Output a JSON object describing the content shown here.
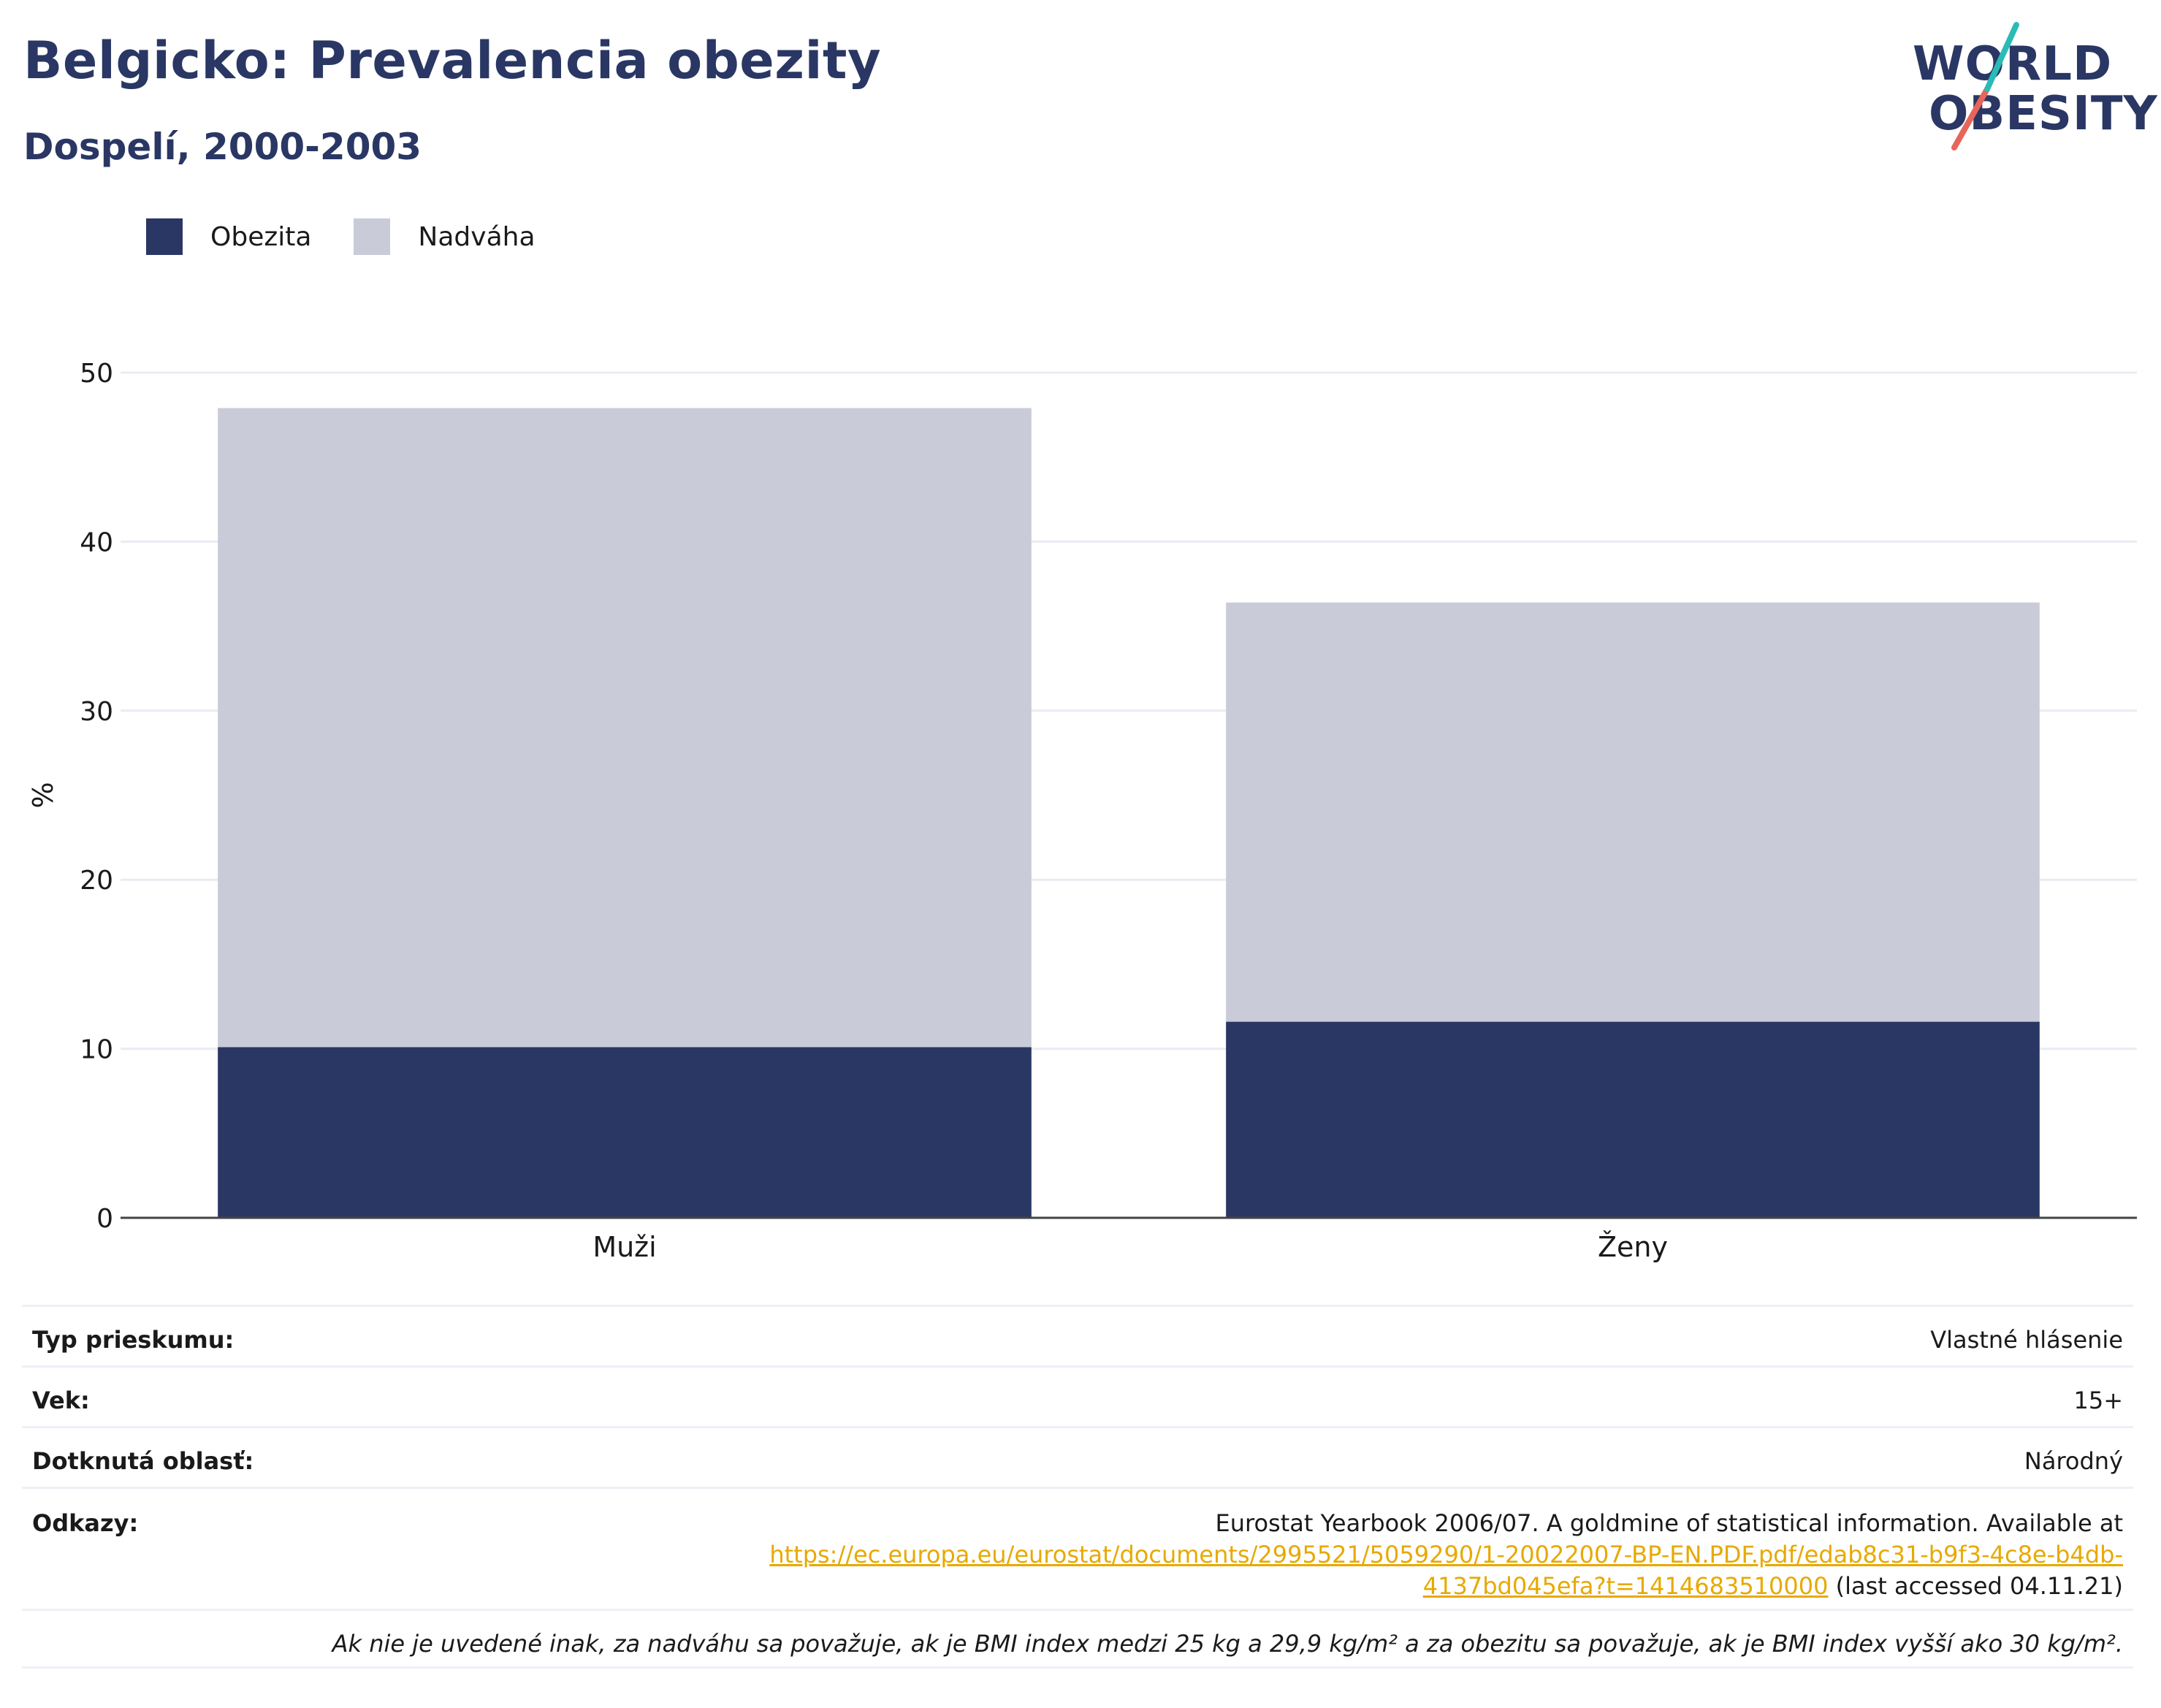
{
  "header": {
    "title": "Belgicko: Prevalencia obezity",
    "subtitle": "Dospelí, 2000-2003"
  },
  "logo": {
    "line1": "WORLD",
    "line2": "OBESITY",
    "accent_colors": [
      "#2bbbb5",
      "#e8655a"
    ]
  },
  "legend": [
    {
      "label": "Obezita",
      "color": "#2a3764"
    },
    {
      "label": "Nadváha",
      "color": "#c9ccd8"
    }
  ],
  "chart_data": {
    "type": "bar",
    "stacked": true,
    "categories": [
      "Muži",
      "Ženy"
    ],
    "series": [
      {
        "name": "Obezita",
        "color": "#2a3764",
        "values": [
          10.1,
          11.6
        ]
      },
      {
        "name": "Nadváha",
        "color": "#c9ccd8",
        "values": [
          37.8,
          24.8
        ]
      }
    ],
    "ylabel": "%",
    "ylim": [
      0,
      50
    ],
    "yticks": [
      0,
      10,
      20,
      30,
      40,
      50
    ],
    "grid": true
  },
  "info": {
    "survey_type": {
      "label": "Typ prieskumu:",
      "value": "Vlastné hlásenie"
    },
    "age": {
      "label": "Vek:",
      "value": "15+"
    },
    "area": {
      "label": "Dotknutá oblasť:",
      "value": "Národný"
    },
    "references": {
      "label": "Odkazy:",
      "text_before": "Eurostat Yearbook 2006/07. A goldmine of statistical information. Available at",
      "link": "https://ec.europa.eu/eurostat/documents/2995521/5059290/1-20022007-BP-EN.PDF.pdf/edab8c31-b9f3-4c8e-b4db-4137bd045efa?t=1414683510000",
      "text_after": "(last accessed 04.11.21)"
    },
    "note": "Ak nie je uvedené inak, za nadváhu sa považuje, ak je BMI index medzi 25 kg a 29,9 kg/m² a za obezitu sa považuje, ak je BMI index vyšší ako 30 kg/m²."
  }
}
